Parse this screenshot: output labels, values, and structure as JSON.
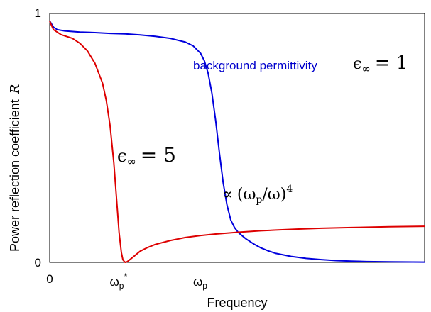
{
  "chart_data": {
    "type": "line",
    "title": "",
    "xlabel": "Frequency",
    "ylabel": "Power reflection coefficient",
    "ylabel_symbol": "R",
    "xlim": [
      0,
      4.97
    ],
    "ylim": [
      0,
      1
    ],
    "x_ticks": [
      {
        "value": 0,
        "label": "0"
      },
      {
        "value": 1.08,
        "base": "ω",
        "sub": "p",
        "sup": "*"
      },
      {
        "value": 2.38,
        "base": "ω",
        "sub": "p",
        "sup": ""
      }
    ],
    "y_ticks": [
      {
        "value": 0,
        "label": "0"
      },
      {
        "value": 1,
        "label": "1"
      }
    ],
    "colors": {
      "blue": "#0000dd",
      "red": "#dd0000"
    },
    "series": [
      {
        "color": "blue",
        "x": [
          0,
          0.02,
          0.05,
          0.1,
          0.2,
          0.4,
          0.6,
          0.8,
          1.0,
          1.2,
          1.4,
          1.6,
          1.8,
          1.9,
          2.0,
          2.05,
          2.1,
          2.15,
          2.2,
          2.25,
          2.3,
          2.35,
          2.4,
          2.45,
          2.5,
          2.6,
          2.7,
          2.8,
          2.9,
          3.0,
          3.2,
          3.4,
          3.6,
          3.8,
          4.0,
          4.2,
          4.5,
          4.97
        ],
        "y": [
          0.97,
          0.96,
          0.945,
          0.935,
          0.93,
          0.925,
          0.923,
          0.92,
          0.918,
          0.914,
          0.908,
          0.9,
          0.885,
          0.87,
          0.84,
          0.81,
          0.76,
          0.68,
          0.57,
          0.44,
          0.32,
          0.23,
          0.17,
          0.14,
          0.12,
          0.095,
          0.075,
          0.058,
          0.046,
          0.036,
          0.024,
          0.016,
          0.011,
          0.007,
          0.005,
          0.003,
          0.002,
          0.001
        ]
      },
      {
        "color": "red",
        "x": [
          0,
          0.02,
          0.05,
          0.1,
          0.15,
          0.2,
          0.3,
          0.4,
          0.5,
          0.6,
          0.7,
          0.75,
          0.8,
          0.85,
          0.9,
          0.92,
          0.95,
          0.97,
          1.0,
          1.03,
          1.05,
          1.08,
          1.12,
          1.16,
          1.2,
          1.3,
          1.4,
          1.6,
          1.8,
          2.0,
          2.2,
          2.5,
          2.8,
          3.0,
          3.3,
          3.6,
          4.0,
          4.5,
          4.97
        ],
        "y": [
          0.97,
          0.955,
          0.935,
          0.925,
          0.915,
          0.91,
          0.9,
          0.88,
          0.85,
          0.8,
          0.72,
          0.65,
          0.55,
          0.4,
          0.2,
          0.12,
          0.04,
          0.01,
          0.0,
          0.003,
          0.008,
          0.015,
          0.025,
          0.035,
          0.045,
          0.06,
          0.072,
          0.088,
          0.1,
          0.108,
          0.114,
          0.121,
          0.127,
          0.13,
          0.134,
          0.137,
          0.14,
          0.143,
          0.145
        ]
      }
    ],
    "annotations": {
      "blue_text": "background permittivity",
      "eps_symbol": "ϵ",
      "eps_sub": "∞",
      "eps_blue_value": "= 1",
      "eps_red_value": "= 5",
      "prop_symbol": "∝",
      "prop_base": "(ω",
      "prop_sub": "p",
      "prop_mid": "/ω)",
      "prop_exp": "4"
    }
  }
}
